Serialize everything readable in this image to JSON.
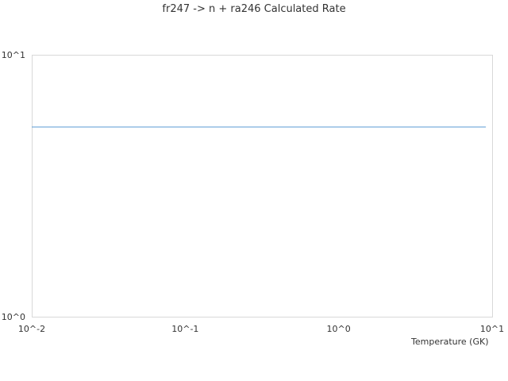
{
  "chart_data": {
    "type": "line",
    "title": "fr247 -> n + ra246 Calculated Rate",
    "xlabel": "Temperature (GK)",
    "ylabel": "",
    "xscale": "log",
    "yscale": "log",
    "xlim": [
      0.01,
      10
    ],
    "ylim": [
      1,
      10
    ],
    "x_ticks": [
      "10^-2",
      "10^-1",
      "10^0",
      "10^1"
    ],
    "y_ticks": [
      "10^0",
      "10^1"
    ],
    "grid": false,
    "series": [
      {
        "color": "#5b9bd5",
        "x": [
          0.01,
          9.1
        ],
        "y": [
          5.3,
          5.3
        ]
      }
    ]
  }
}
